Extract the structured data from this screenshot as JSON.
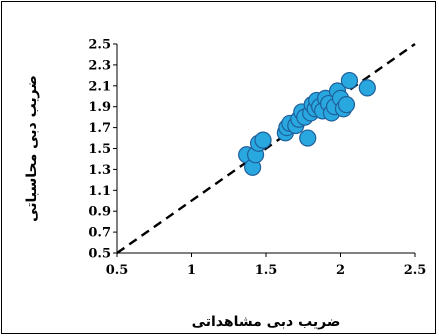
{
  "chart_data": {
    "type": "scatter",
    "xlabel": "ضریب دبی مشاهداتی",
    "ylabel": "ضریب دبی محاسباتی",
    "xlim": [
      0.5,
      2.5
    ],
    "ylim": [
      0.5,
      2.5
    ],
    "x_ticks": [
      "0.5",
      "1",
      "1.5",
      "2",
      "2.5"
    ],
    "y_ticks": [
      "0.5",
      "0.7",
      "0.9",
      "1.1",
      "1.3",
      "1.5",
      "1.7",
      "1.9",
      "2.1",
      "2.3",
      "2.5"
    ],
    "grid": false,
    "reference_line": {
      "from": [
        0.5,
        0.5
      ],
      "to": [
        2.5,
        2.5
      ],
      "style": "dashed"
    },
    "marker_fill": "#29a8e0",
    "marker_stroke": "#1f5f9a",
    "points": [
      {
        "x": 1.37,
        "y": 1.44
      },
      {
        "x": 1.41,
        "y": 1.32
      },
      {
        "x": 1.43,
        "y": 1.44
      },
      {
        "x": 1.45,
        "y": 1.55
      },
      {
        "x": 1.48,
        "y": 1.58
      },
      {
        "x": 1.63,
        "y": 1.65
      },
      {
        "x": 1.64,
        "y": 1.7
      },
      {
        "x": 1.66,
        "y": 1.74
      },
      {
        "x": 1.7,
        "y": 1.72
      },
      {
        "x": 1.72,
        "y": 1.78
      },
      {
        "x": 1.74,
        "y": 1.85
      },
      {
        "x": 1.76,
        "y": 1.8
      },
      {
        "x": 1.78,
        "y": 1.6
      },
      {
        "x": 1.8,
        "y": 1.84
      },
      {
        "x": 1.81,
        "y": 1.92
      },
      {
        "x": 1.83,
        "y": 1.88
      },
      {
        "x": 1.84,
        "y": 1.96
      },
      {
        "x": 1.86,
        "y": 1.9
      },
      {
        "x": 1.88,
        "y": 1.86
      },
      {
        "x": 1.9,
        "y": 1.98
      },
      {
        "x": 1.92,
        "y": 1.93
      },
      {
        "x": 1.94,
        "y": 1.84
      },
      {
        "x": 1.96,
        "y": 1.9
      },
      {
        "x": 1.98,
        "y": 2.05
      },
      {
        "x": 2.0,
        "y": 1.98
      },
      {
        "x": 2.02,
        "y": 1.88
      },
      {
        "x": 2.04,
        "y": 1.92
      },
      {
        "x": 2.06,
        "y": 2.15
      },
      {
        "x": 2.18,
        "y": 2.08
      }
    ]
  }
}
